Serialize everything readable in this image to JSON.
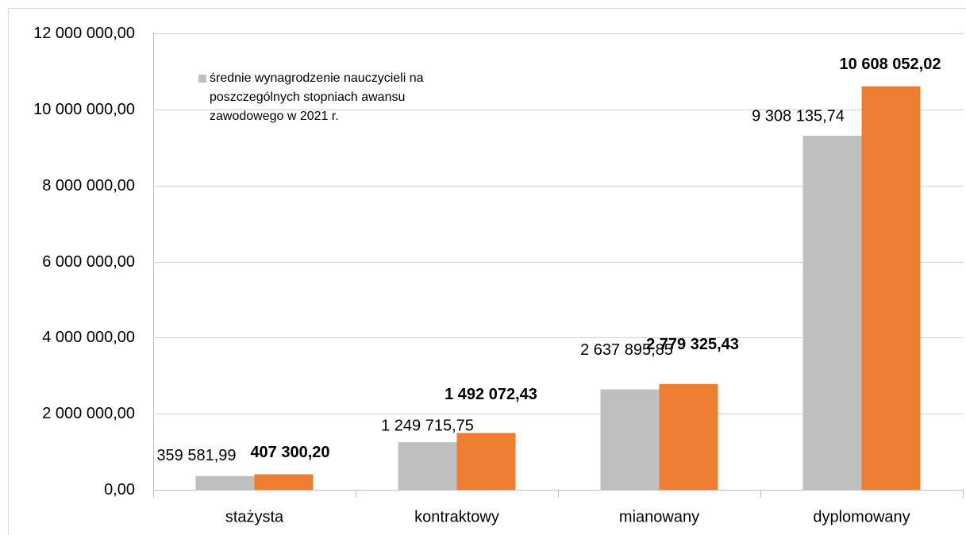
{
  "chart_data": {
    "type": "bar",
    "categories": [
      "stażysta",
      "kontraktowy",
      "mianowany",
      "dyplomowany"
    ],
    "series": [
      {
        "name": "średnie wynagrodzenie nauczycieli na poszczególnych stopniach awansu zawodowego w 2021 r.",
        "color": "#bfbfbf",
        "values": [
          359581.99,
          1249715.75,
          2637895.85,
          9308135.74
        ],
        "value_labels": [
          "359 581,99",
          "1 249 715,75",
          "2 637 895,85",
          "9 308 135,74"
        ]
      },
      {
        "color": "#ed7d31",
        "values": [
          407300.2,
          1492072.43,
          2779325.43,
          10608052.02
        ],
        "value_labels": [
          "407 300,20",
          "1 492 072,43",
          "2 779 325,43",
          "10 608 052,02"
        ]
      }
    ],
    "ylim": [
      0,
      12000000
    ],
    "yticks": [
      {
        "value": 0,
        "label": "0,00"
      },
      {
        "value": 2000000,
        "label": "2 000 000,00"
      },
      {
        "value": 4000000,
        "label": "4 000 000,00"
      },
      {
        "value": 6000000,
        "label": "6 000 000,00"
      },
      {
        "value": 8000000,
        "label": "8 000 000,00"
      },
      {
        "value": 10000000,
        "label": "10 000 000,00"
      },
      {
        "value": 12000000,
        "label": "12 000 000,00"
      }
    ],
    "grid": true
  }
}
